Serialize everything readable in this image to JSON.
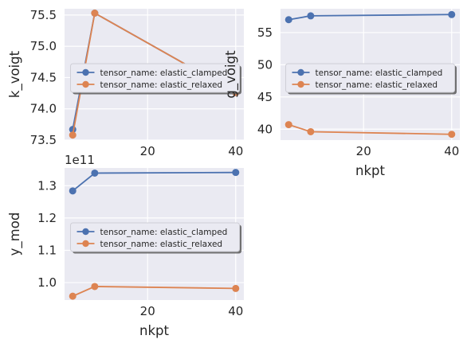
{
  "chart_data": [
    {
      "type": "line",
      "x": [
        3,
        8,
        40
      ],
      "series": [
        {
          "name": "tensor_name: elastic_clamped",
          "color": "#4c72b0",
          "values": [
            73.67,
            75.53,
            74.26
          ]
        },
        {
          "name": "tensor_name: elastic_relaxed",
          "color": "#dd8452",
          "values": [
            73.58,
            75.53,
            74.26
          ]
        }
      ],
      "xlabel": "",
      "ylabel": "k_voigt",
      "xlim": [
        1.15,
        41.85
      ],
      "ylim": [
        73.5,
        75.6
      ],
      "xticks": [
        20,
        40
      ],
      "yticks": [
        "73.5",
        "74.0",
        "74.5",
        "75.0",
        "75.5"
      ],
      "ytick_values": [
        73.5,
        74.0,
        74.5,
        75.0,
        75.5
      ],
      "offset_text": "",
      "grid": true,
      "legend": "center"
    },
    {
      "type": "line",
      "x": [
        3,
        8,
        40
      ],
      "series": [
        {
          "name": "tensor_name: elastic_clamped",
          "color": "#4c72b0",
          "values": [
            57.0,
            57.6,
            57.8
          ]
        },
        {
          "name": "tensor_name: elastic_relaxed",
          "color": "#dd8452",
          "values": [
            40.7,
            39.6,
            39.2
          ]
        }
      ],
      "xlabel": "nkpt",
      "ylabel": "g_voigt",
      "xlim": [
        1.15,
        41.85
      ],
      "ylim": [
        38.3,
        58.7
      ],
      "xticks": [
        20,
        40
      ],
      "yticks": [
        "40",
        "45",
        "50",
        "55"
      ],
      "ytick_values": [
        40,
        45,
        50,
        55
      ],
      "offset_text": "",
      "grid": true,
      "legend": "center"
    },
    {
      "type": "line",
      "x": [
        3,
        8,
        40
      ],
      "series": [
        {
          "name": "tensor_name: elastic_clamped",
          "color": "#4c72b0",
          "values": [
            1.284,
            1.339,
            1.341
          ]
        },
        {
          "name": "tensor_name: elastic_relaxed",
          "color": "#dd8452",
          "values": [
            0.958,
            0.988,
            0.982
          ]
        }
      ],
      "xlabel": "nkpt",
      "ylabel": "y_mod",
      "xlim": [
        1.15,
        41.85
      ],
      "ylim": [
        0.946,
        1.355
      ],
      "xticks": [
        20,
        40
      ],
      "yticks": [
        "1.0",
        "1.1",
        "1.2",
        "1.3"
      ],
      "ytick_values": [
        1.0,
        1.1,
        1.2,
        1.3
      ],
      "offset_text": "1e11",
      "grid": true,
      "legend": "center"
    }
  ]
}
